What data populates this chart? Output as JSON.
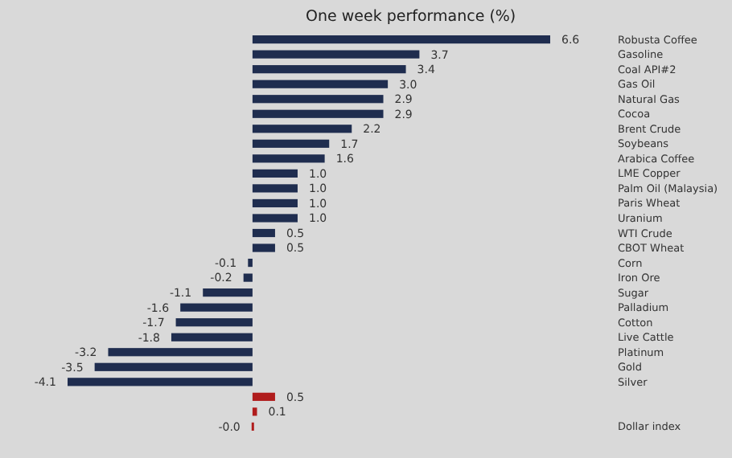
{
  "chart_data": {
    "type": "bar",
    "orientation": "horizontal",
    "title": "One week performance (%)",
    "categories": [
      "Robusta Coffee",
      "Gasoline",
      "Coal API#2",
      "Gas Oil",
      "Natural Gas",
      "Cocoa",
      "Brent Crude",
      "Soybeans",
      "Arabica Coffee",
      "LME Copper",
      "Palm Oil (Malaysia)",
      "Paris Wheat",
      "Uranium",
      "WTI Crude",
      "CBOT Wheat",
      "Corn",
      "Iron Ore",
      "Sugar",
      "Palladium",
      "Cotton",
      "Live Cattle",
      "Platinum",
      "Gold",
      "Silver",
      null,
      null,
      "Dollar index"
    ],
    "values": [
      6.6,
      3.7,
      3.4,
      3.0,
      2.9,
      2.9,
      2.2,
      1.7,
      1.6,
      1.0,
      1.0,
      1.0,
      1.0,
      0.5,
      0.5,
      -0.1,
      -0.2,
      -1.1,
      -1.6,
      -1.7,
      -1.8,
      -3.2,
      -3.5,
      -4.1,
      0.5,
      0.1,
      -0.02
    ],
    "value_labels": [
      "6.6",
      "3.7",
      "3.4",
      "3.0",
      "2.9",
      "2.9",
      "2.2",
      "1.7",
      "1.6",
      "1.0",
      "1.0",
      "1.0",
      "1.0",
      "0.5",
      "0.5",
      "-0.1",
      "-0.2",
      "-1.1",
      "-1.6",
      "-1.7",
      "-1.8",
      "-3.2",
      "-3.5",
      "-4.1",
      "0.5",
      "0.1",
      "-0.0"
    ],
    "colors": [
      "#1f2d4f",
      "#1f2d4f",
      "#1f2d4f",
      "#1f2d4f",
      "#1f2d4f",
      "#1f2d4f",
      "#1f2d4f",
      "#1f2d4f",
      "#1f2d4f",
      "#1f2d4f",
      "#1f2d4f",
      "#1f2d4f",
      "#1f2d4f",
      "#1f2d4f",
      "#1f2d4f",
      "#1f2d4f",
      "#1f2d4f",
      "#1f2d4f",
      "#1f2d4f",
      "#1f2d4f",
      "#1f2d4f",
      "#1f2d4f",
      "#1f2d4f",
      "#1f2d4f",
      "#b01c1c",
      "#b01c1c",
      "#b01c1c"
    ]
  }
}
